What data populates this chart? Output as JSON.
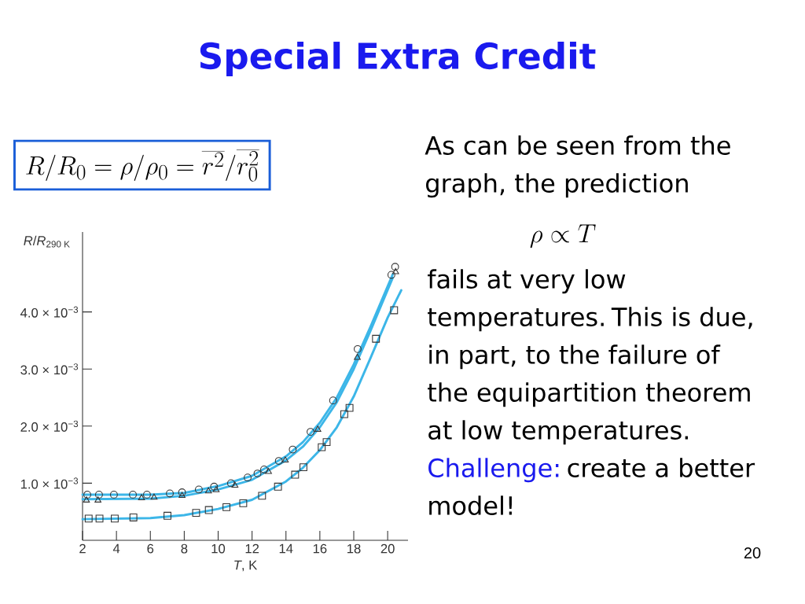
{
  "chart_data": {
    "type": "scatter",
    "title": "Special Extra Credit",
    "xlabel": "*T*, K",
    "ylabel": "*R*/*R*$_{290 K}$",
    "annotations": [
      "R / R_0 = \\rho / \\rho_0 = \\overline{r^2} / \\overline{r_0^2}",
      "As can be seen from the graph, the prediction",
      "\\rho \\propto T",
      "fails at very low temperatures. This is due, in part, to the failure of the equipartition theorem at low temperatures.",
      "Challenge:",
      "create a better model!",
      "20"
    ],
    "xlim": [
      2,
      21.2
    ],
    "ylim": [
      0,
      0.0054
    ],
    "xticks": [
      2,
      4,
      6,
      8,
      10,
      12,
      14,
      16,
      18,
      20
    ],
    "yticks": [
      {
        "value": 0.001,
        "label": "1.0 × 10$^{−3}$"
      },
      {
        "value": 0.002,
        "label": "2.0 × 10$^{−3}$"
      },
      {
        "value": 0.003,
        "label": "3.0 × 10$^{−3}$"
      },
      {
        "value": 0.004,
        "label": "4.0 × 10$^{−3}$"
      }
    ],
    "series": [
      {
        "type": "line",
        "color": "#3cb6e8",
        "x": [
          2,
          6,
          8,
          10,
          12,
          14,
          15,
          16,
          17,
          18,
          19,
          20.3
        ],
        "values": [
          0.0008,
          0.0008,
          0.00083,
          0.00095,
          0.00113,
          0.00147,
          0.00172,
          0.00206,
          0.0025,
          0.00308,
          0.00375,
          0.00466
        ]
      },
      {
        "type": "line",
        "color": "#3cb6e8",
        "x": [
          2,
          6,
          8,
          10,
          12,
          14,
          15,
          16,
          17,
          18,
          19,
          20.3
        ],
        "values": [
          0.00072,
          0.00073,
          0.00078,
          0.00089,
          0.00106,
          0.0014,
          0.00164,
          0.00198,
          0.00242,
          0.003,
          0.00368,
          0.0046
        ]
      },
      {
        "type": "line",
        "color": "#3cb6e8",
        "x": [
          2,
          6,
          8,
          10,
          12,
          14,
          15,
          16,
          17,
          18,
          19,
          20,
          20.8
        ],
        "values": [
          0.00037,
          0.00039,
          0.00044,
          0.00055,
          0.00071,
          0.00103,
          0.00127,
          0.00158,
          0.00198,
          0.00252,
          0.0032,
          0.0039,
          0.00438
        ]
      },
      {
        "type": "scatter",
        "marker": "circle",
        "color": "#333333",
        "x": [
          2.28,
          2.97,
          3.85,
          4.97,
          5.8,
          7.15,
          7.87,
          8.86,
          9.76,
          10.76,
          11.74,
          12.32,
          12.71,
          13.58,
          14.4,
          15.45,
          16.78,
          18.23,
          20.22,
          20.44
        ],
        "values": [
          0.0008,
          0.0008,
          0.0008,
          0.0008,
          0.0008,
          0.00082,
          0.00084,
          0.00089,
          0.00094,
          0.001,
          0.0011,
          0.00117,
          0.00124,
          0.00139,
          0.00159,
          0.0019,
          0.00245,
          0.00335,
          0.00465,
          0.00479
        ]
      },
      {
        "type": "scatter",
        "marker": "triangle",
        "color": "#333333",
        "x": [
          2.23,
          2.91,
          5.48,
          6.22,
          7.87,
          9.43,
          9.88,
          10.99,
          12.97,
          13.96,
          15.88,
          18.21,
          20.47
        ],
        "values": [
          0.0007,
          0.0007,
          0.00074,
          0.00075,
          0.00078,
          0.00086,
          0.00088,
          0.00096,
          0.0012,
          0.0014,
          0.00194,
          0.0032,
          0.0047
        ]
      },
      {
        "type": "scatter",
        "marker": "square",
        "color": "#333333",
        "x": [
          2.36,
          3.0,
          3.9,
          5.0,
          7.01,
          8.7,
          9.45,
          10.49,
          11.48,
          12.59,
          13.53,
          14.54,
          15.03,
          16.11,
          16.4,
          17.44,
          17.75,
          19.31,
          20.38
        ],
        "values": [
          0.00038,
          0.00038,
          0.00038,
          0.0004,
          0.00043,
          0.00048,
          0.00053,
          0.00058,
          0.00065,
          0.00078,
          0.00094,
          0.00115,
          0.00128,
          0.00163,
          0.00172,
          0.00221,
          0.00232,
          0.00353,
          0.00403
        ]
      }
    ]
  }
}
